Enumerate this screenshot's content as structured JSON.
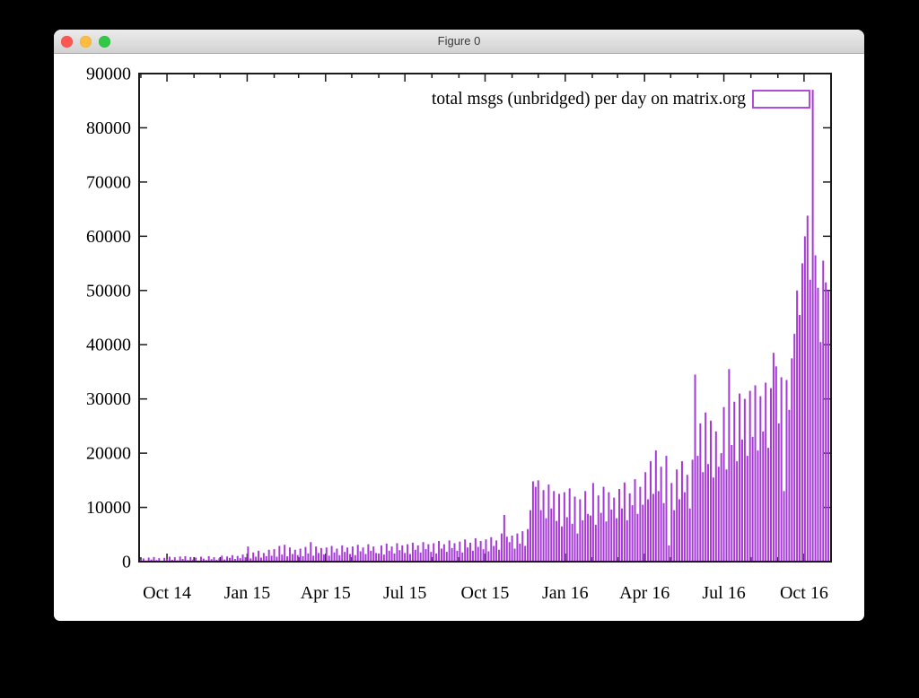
{
  "window": {
    "title": "Figure 0",
    "buttons": [
      {
        "name": "close-button",
        "color": "#fc5753"
      },
      {
        "name": "minimize-button",
        "color": "#fdbc40"
      },
      {
        "name": "zoom-button",
        "color": "#33c748"
      }
    ]
  },
  "chart_data": {
    "type": "bar",
    "title": "",
    "xlabel": "",
    "ylabel": "",
    "legend": {
      "label": "total msgs (unbridged) per day on matrix.org",
      "position": "top-right"
    },
    "grid": false,
    "bar_color": "#a63ad6",
    "axis_color": "#1a1a1a",
    "y_axis": {
      "min": 0,
      "max": 90000,
      "tick_values": [
        0,
        10000,
        20000,
        30000,
        40000,
        50000,
        60000,
        70000,
        80000,
        90000
      ]
    },
    "x_axis": {
      "start_date": "2014-08-30",
      "end_date": "2016-11-01",
      "minor_tick_interval": "month",
      "major_ticks": [
        {
          "date": "2014-10-01",
          "label": "Oct 14"
        },
        {
          "date": "2015-01-01",
          "label": "Jan 15"
        },
        {
          "date": "2015-04-01",
          "label": "Apr 15"
        },
        {
          "date": "2015-07-01",
          "label": "Jul 15"
        },
        {
          "date": "2015-10-01",
          "label": "Oct 15"
        },
        {
          "date": "2016-01-01",
          "label": "Jan 16"
        },
        {
          "date": "2016-04-01",
          "label": "Apr 16"
        },
        {
          "date": "2016-07-01",
          "label": "Jul 16"
        },
        {
          "date": "2016-10-01",
          "label": "Oct 16"
        }
      ]
    },
    "series": {
      "name": "total msgs (unbridged) per day on matrix.org",
      "start_date": "2014-09-01",
      "step_days": 3,
      "values": [
        350,
        600,
        200,
        750,
        400,
        850,
        300,
        650,
        150,
        700,
        450,
        900,
        350,
        800,
        250,
        950,
        500,
        1000,
        300,
        850,
        400,
        750,
        200,
        900,
        550,
        300,
        1000,
        450,
        800,
        350,
        600,
        1100,
        400,
        950,
        700,
        1200,
        500,
        1050,
        650,
        1300,
        800,
        2800,
        600,
        1700,
        900,
        2000,
        750,
        1600,
        1000,
        2200,
        1100,
        2300,
        900,
        2900,
        1300,
        3100,
        1000,
        2600,
        1400,
        2200,
        1200,
        2400,
        1000,
        2700,
        1500,
        3600,
        1100,
        2800,
        1600,
        2500,
        1300,
        2600,
        1100,
        2900,
        1700,
        2400,
        1200,
        3000,
        1800,
        2600,
        1400,
        2800,
        1200,
        3100,
        1900,
        2600,
        1400,
        3200,
        2000,
        2800,
        1600,
        1500,
        3000,
        1300,
        3300,
        2000,
        2800,
        1500,
        3400,
        2100,
        3000,
        1600,
        3200,
        1400,
        3500,
        2200,
        3000,
        1700,
        3600,
        2300,
        3200,
        1800,
        3400,
        1500,
        3800,
        2400,
        3200,
        1800,
        3900,
        2500,
        3400,
        2000,
        3700,
        1700,
        4100,
        2600,
        3500,
        2000,
        4300,
        2700,
        3800,
        2300,
        4100,
        1900,
        4500,
        2900,
        3900,
        2200,
        5200,
        8600,
        4600,
        3600,
        4800,
        2400,
        5200,
        3300,
        5600,
        2900,
        6000,
        9500,
        14800,
        13800,
        15000,
        9500,
        13200,
        8000,
        14200,
        9800,
        13000,
        7500,
        12500,
        6500,
        12800,
        8200,
        13500,
        7000,
        12000,
        5200,
        11500,
        7600,
        13000,
        8800,
        8500,
        14500,
        6800,
        12200,
        9000,
        13800,
        7400,
        12800,
        9600,
        11800,
        8000,
        13400,
        9800,
        14600,
        7600,
        12600,
        10400,
        15200,
        8800,
        13800,
        10500,
        16500,
        11500,
        18500,
        12500,
        20500,
        13000,
        17500,
        10800,
        19500,
        3000,
        14500,
        9500,
        17000,
        11500,
        18500,
        12800,
        16000,
        9800,
        18800,
        34500,
        19500,
        25500,
        16500,
        27500,
        18000,
        26000,
        15500,
        24000,
        17500,
        20000,
        28500,
        17000,
        35500,
        21500,
        29500,
        18500,
        31000,
        22500,
        30000,
        19500,
        31500,
        23000,
        32500,
        20500,
        30500,
        24000,
        33000,
        21000,
        32000,
        38500,
        36000,
        25500,
        34000,
        13000,
        33500,
        28000,
        37500,
        42000,
        50000,
        45500,
        55000,
        60000,
        63800,
        52000,
        87000,
        56500,
        50500,
        40500,
        55500,
        51500,
        50000
      ]
    }
  }
}
